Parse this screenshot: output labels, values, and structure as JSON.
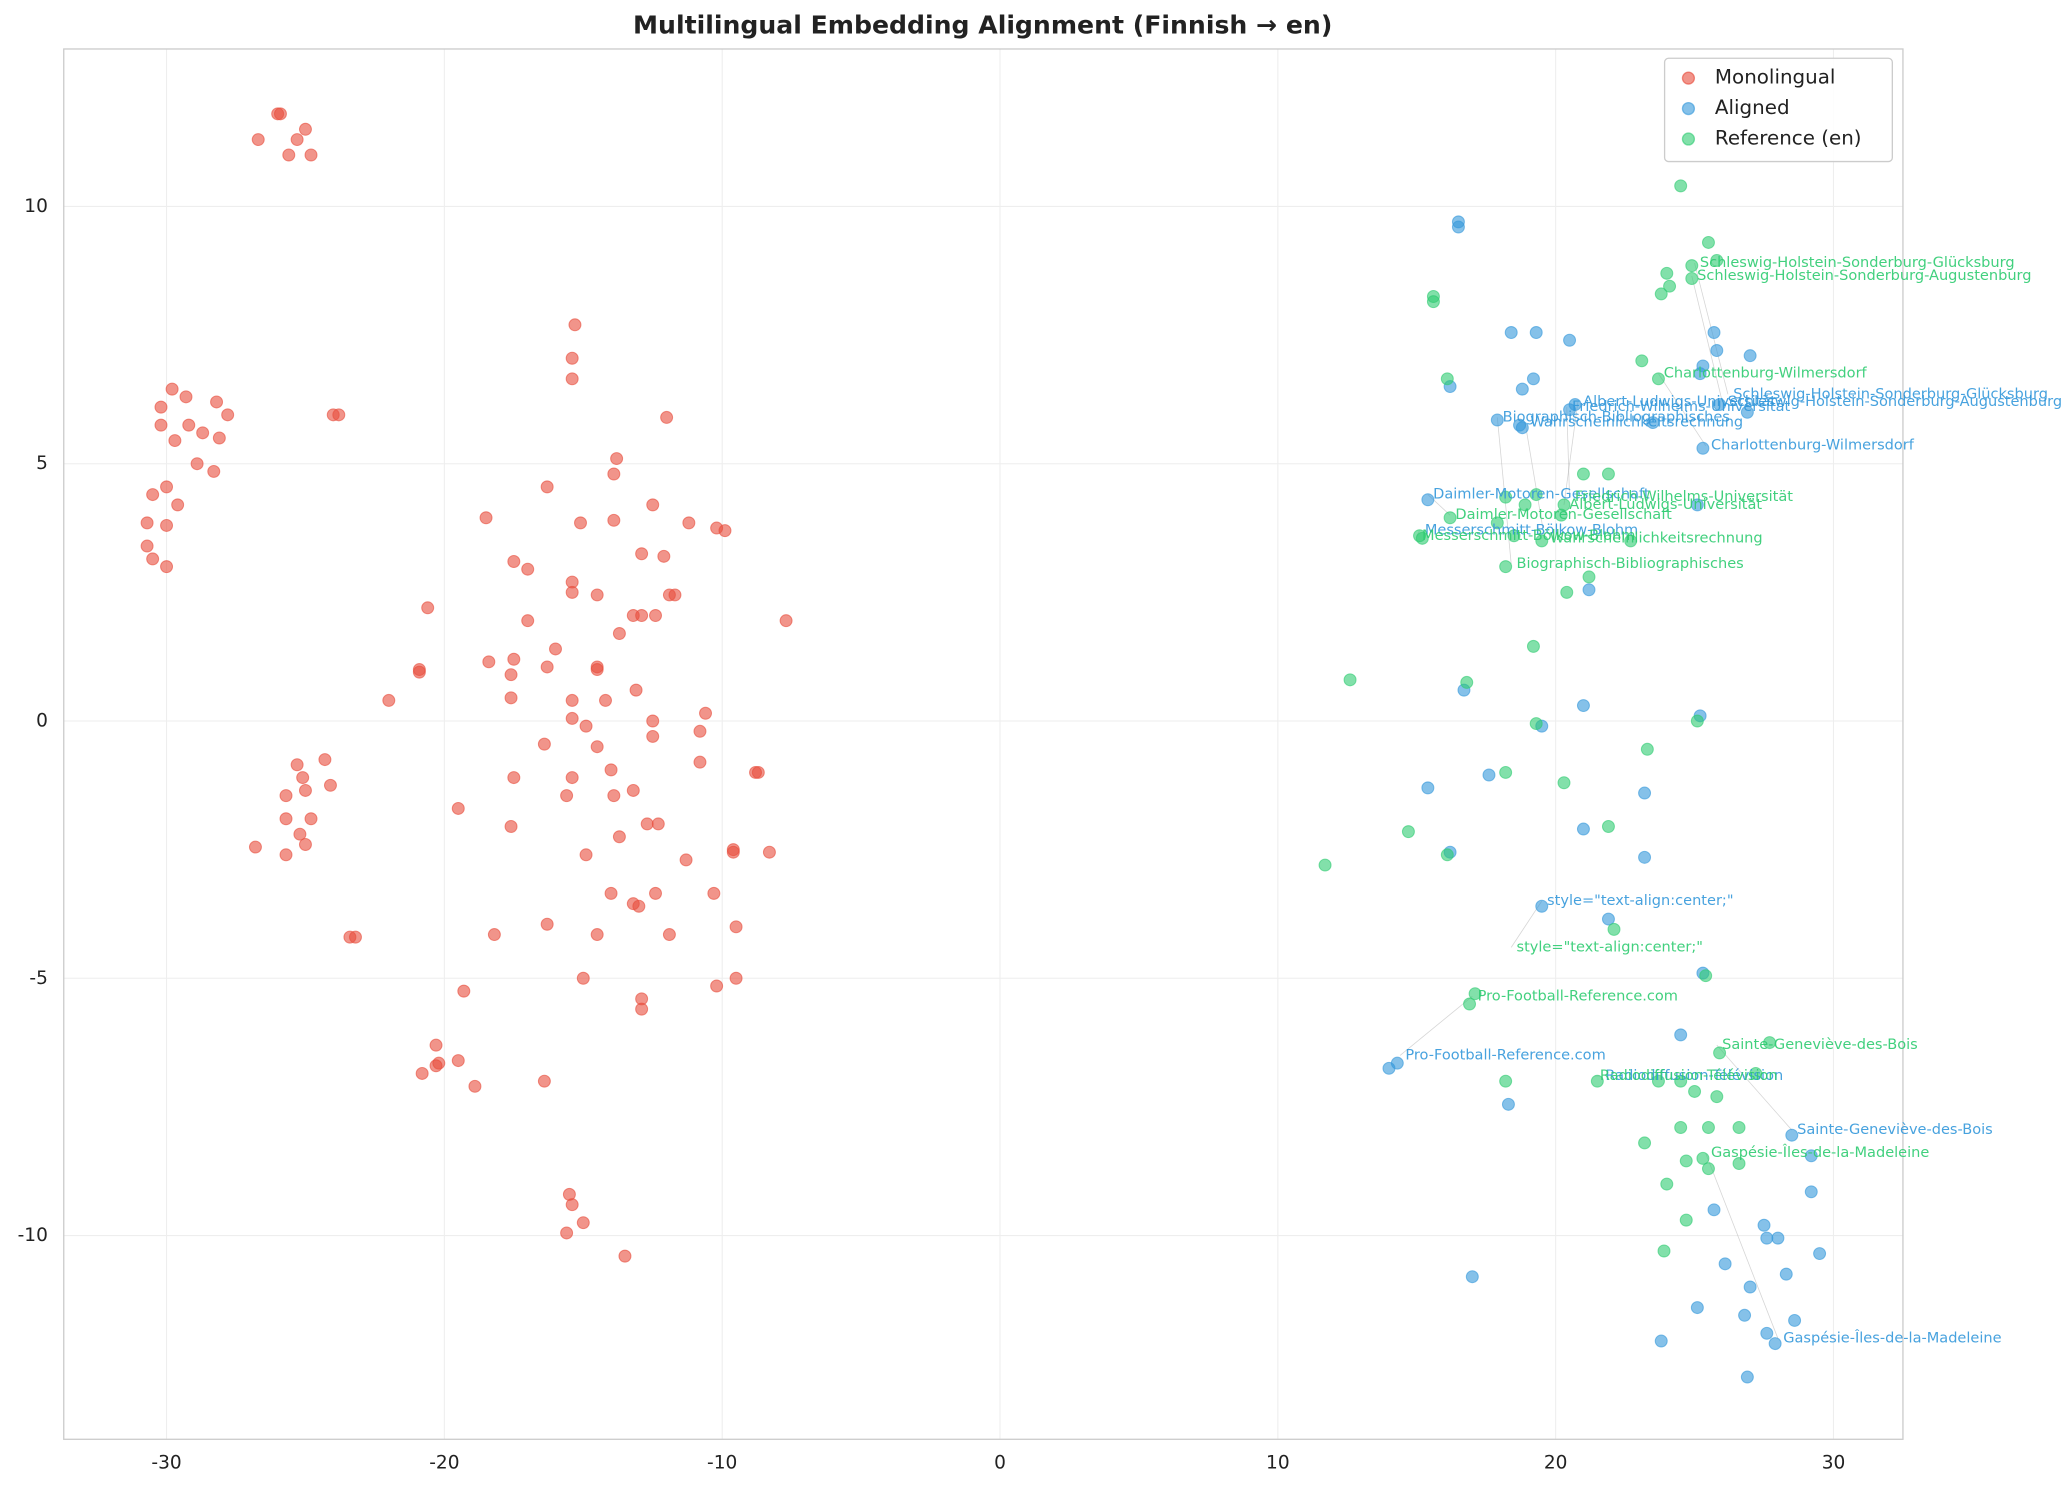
{
  "chart_data": {
    "type": "scatter",
    "title": "Multilingual Embedding Alignment (Finnish → en)",
    "xlim": [
      -33.7,
      32.5
    ],
    "ylim": [
      -13.96,
      13.06
    ],
    "xticks": [
      -30,
      -20,
      -10,
      0,
      10,
      20,
      30
    ],
    "yticks": [
      -10,
      -5,
      0,
      5,
      10
    ],
    "grid": true,
    "legend": "upper right",
    "alpha": 0.6,
    "series": [
      {
        "name": "Monolingual",
        "color": "#e74c3c",
        "x": [
          -26.0,
          -25.9,
          -26.7,
          -25.0,
          -25.3,
          -25.6,
          -24.8,
          -29.8,
          -29.3,
          -30.2,
          -28.2,
          -27.8,
          -30.2,
          -29.2,
          -28.7,
          -28.1,
          -29.7,
          -28.9,
          -28.3,
          -30.0,
          -30.5,
          -29.6,
          -30.7,
          -30.0,
          -30.7,
          -30.5,
          -30.0,
          -24.0,
          -23.8,
          -15.3,
          -15.4,
          -15.4,
          -12.0,
          -16.3,
          -13.8,
          -13.9,
          -18.5,
          -15.1,
          -13.9,
          -12.5,
          -11.2,
          -10.2,
          -9.9,
          -12.9,
          -12.1,
          -17.5,
          -17.0,
          -15.4,
          -15.4,
          -14.5,
          -11.9,
          -11.7,
          -20.6,
          -13.2,
          -12.9,
          -12.4,
          -17.0,
          -7.7,
          -13.7,
          -16.0,
          -18.4,
          -17.5,
          -16.3,
          -14.5,
          -14.5,
          -20.9,
          -20.9,
          -17.6,
          -13.1,
          -22.0,
          -17.6,
          -15.4,
          -14.2,
          -10.6,
          -15.4,
          -12.5,
          -14.9,
          -10.8,
          -12.5,
          -16.4,
          -14.5,
          -10.8,
          -24.3,
          -25.3,
          -14.0,
          -25.1,
          -15.4,
          -8.8,
          -8.7,
          -17.5,
          -24.1,
          -25.0,
          -25.7,
          -15.6,
          -13.9,
          -13.2,
          -19.5,
          -24.8,
          -25.7,
          -17.6,
          -12.7,
          -12.3,
          -25.2,
          -13.7,
          -25.0,
          -26.8,
          -9.6,
          -9.6,
          -8.3,
          -25.7,
          -14.9,
          -11.3,
          -12.4,
          -14.0,
          -10.3,
          -13.2,
          -13.0,
          -16.3,
          -9.5,
          -23.4,
          -23.2,
          -18.2,
          -14.5,
          -11.9,
          -15.0,
          -9.5,
          -19.3,
          -10.2,
          -12.9,
          -12.9,
          -20.3,
          -20.2,
          -20.3,
          -19.5,
          -20.8,
          -16.4,
          -18.9,
          -15.5,
          -15.4,
          -15.6,
          -15.0,
          -13.5
        ],
        "y": [
          11.8,
          11.8,
          11.3,
          11.5,
          11.3,
          11.0,
          11.0,
          6.45,
          6.3,
          6.1,
          6.2,
          5.95,
          5.75,
          5.75,
          5.6,
          5.5,
          5.45,
          5.0,
          4.85,
          4.55,
          4.4,
          4.2,
          3.85,
          3.8,
          3.4,
          3.15,
          3.0,
          5.95,
          5.95,
          7.7,
          7.05,
          6.65,
          5.9,
          4.55,
          5.1,
          4.8,
          3.95,
          3.85,
          3.9,
          4.2,
          3.85,
          3.75,
          3.7,
          3.25,
          3.2,
          3.1,
          2.95,
          2.7,
          2.5,
          2.45,
          2.45,
          2.45,
          2.2,
          2.05,
          2.05,
          2.05,
          1.95,
          1.95,
          1.7,
          1.4,
          1.15,
          1.2,
          1.05,
          1.05,
          1.0,
          1.0,
          0.95,
          0.9,
          0.6,
          0.4,
          0.45,
          0.4,
          0.4,
          0.15,
          0.05,
          0.0,
          -0.1,
          -0.2,
          -0.3,
          -0.45,
          -0.5,
          -0.8,
          -0.75,
          -0.85,
          -0.95,
          -1.1,
          -1.1,
          -1.0,
          -1.0,
          -1.1,
          -1.25,
          -1.35,
          -1.45,
          -1.45,
          -1.45,
          -1.35,
          -1.7,
          -1.9,
          -1.9,
          -2.05,
          -2.0,
          -2.0,
          -2.2,
          -2.25,
          -2.4,
          -2.45,
          -2.5,
          -2.55,
          -2.55,
          -2.6,
          -2.6,
          -2.7,
          -3.35,
          -3.35,
          -3.35,
          -3.55,
          -3.6,
          -3.95,
          -4.0,
          -4.2,
          -4.2,
          -4.15,
          -4.15,
          -4.15,
          -5.0,
          -5.0,
          -5.25,
          -5.15,
          -5.4,
          -5.6,
          -6.3,
          -6.65,
          -6.7,
          -6.6,
          -6.85,
          -7.0,
          -7.1,
          -9.2,
          -9.4,
          -9.95,
          -9.75,
          -10.4
        ]
      },
      {
        "name": "Aligned",
        "color": "#3498db",
        "x": [
          16.5,
          16.5,
          18.4,
          19.3,
          20.5,
          25.7,
          27.0,
          25.8,
          25.3,
          19.2,
          16.2,
          18.8,
          25.2,
          20.7,
          20.5,
          25.9,
          26.9,
          17.9,
          18.7,
          18.8,
          23.5,
          25.3,
          15.4,
          25.1,
          21.2,
          16.7,
          21.0,
          25.2,
          19.5,
          17.6,
          15.4,
          23.2,
          21.0,
          16.2,
          23.2,
          19.5,
          21.9,
          25.3,
          24.5,
          14.3,
          14.0,
          18.3,
          28.5,
          29.2,
          29.2,
          25.7,
          27.5,
          27.6,
          28.0,
          29.5,
          26.1,
          28.3,
          17.0,
          27.0,
          25.1,
          26.8,
          28.6,
          27.6,
          27.9,
          23.8,
          26.9
        ],
        "y": [
          9.7,
          9.6,
          7.55,
          7.55,
          7.4,
          7.55,
          7.1,
          7.2,
          6.9,
          6.65,
          6.5,
          6.45,
          6.75,
          6.15,
          6.05,
          6.15,
          6.0,
          5.85,
          5.75,
          5.7,
          5.8,
          5.3,
          4.3,
          4.2,
          2.55,
          0.6,
          0.3,
          0.1,
          -0.1,
          -1.05,
          -1.3,
          -1.4,
          -2.1,
          -2.55,
          -2.65,
          -3.6,
          -3.85,
          -4.9,
          -6.1,
          -6.65,
          -6.75,
          -7.45,
          -8.05,
          -8.45,
          -9.15,
          -9.5,
          -9.8,
          -10.05,
          -10.05,
          -10.35,
          -10.55,
          -10.75,
          -10.8,
          -11.0,
          -11.4,
          -11.55,
          -11.65,
          -11.9,
          -12.1,
          -12.05,
          -12.75
        ]
      },
      {
        "name": "Reference (en)",
        "color": "#2ecc71",
        "x": [
          24.5,
          25.5,
          25.8,
          24.9,
          24.0,
          24.1,
          24.9,
          23.8,
          15.6,
          15.6,
          23.1,
          23.7,
          16.1,
          21.0,
          21.9,
          18.2,
          19.3,
          18.9,
          20.3,
          20.2,
          16.2,
          17.9,
          18.5,
          15.1,
          15.2,
          19.5,
          22.7,
          18.2,
          21.2,
          20.4,
          19.2,
          12.6,
          16.8,
          19.3,
          25.1,
          23.3,
          18.2,
          20.3,
          21.9,
          14.7,
          16.1,
          11.7,
          22.1,
          25.4,
          17.1,
          16.9,
          27.7,
          25.9,
          27.2,
          18.2,
          21.5,
          23.7,
          24.5,
          25.0,
          25.8,
          24.5,
          25.5,
          26.6,
          23.2,
          24.7,
          25.3,
          25.5,
          26.6,
          24.0,
          24.7,
          23.9
        ],
        "y": [
          10.4,
          9.3,
          8.95,
          8.85,
          8.7,
          8.45,
          8.6,
          8.3,
          8.25,
          8.15,
          7.0,
          6.65,
          6.65,
          4.8,
          4.8,
          4.35,
          4.4,
          4.2,
          4.2,
          4.0,
          3.95,
          3.85,
          3.6,
          3.6,
          3.55,
          3.5,
          3.5,
          3.0,
          2.8,
          2.5,
          1.45,
          0.8,
          0.75,
          -0.05,
          0.0,
          -0.55,
          -1.0,
          -1.2,
          -2.05,
          -2.15,
          -2.6,
          -2.8,
          -4.05,
          -4.95,
          -5.3,
          -5.5,
          -6.25,
          -6.45,
          -6.85,
          -7.0,
          -7.0,
          -7.0,
          -7.0,
          -7.2,
          -7.3,
          -7.9,
          -7.9,
          -7.9,
          -8.2,
          -8.55,
          -8.5,
          -8.7,
          -8.6,
          -9.0,
          -9.7,
          -10.3
        ]
      }
    ],
    "annotations": [
      {
        "text": "Schleswig-Holstein-Sonderburg-Glücksburg",
        "x": 26.2,
        "y": 6.35,
        "series": 1
      },
      {
        "text": "Schleswig-Holstein-Sonderburg-Augustenburg",
        "x": 26.0,
        "y": 6.2,
        "series": 1
      },
      {
        "text": "Albert-Ludwigs-Universität",
        "x": 20.8,
        "y": 6.2,
        "series": 1
      },
      {
        "text": "Friedrich-Wilhelms-Universität",
        "x": 20.4,
        "y": 6.1,
        "series": 1
      },
      {
        "text": "Biographisch-Bibliographisches",
        "x": 17.9,
        "y": 5.9,
        "series": 1
      },
      {
        "text": "Wahrscheinlichkeitsrechnung",
        "x": 18.9,
        "y": 5.8,
        "series": 1
      },
      {
        "text": "Charlottenburg-Wilmersdorf",
        "x": 25.4,
        "y": 5.35,
        "series": 1
      },
      {
        "text": "Daimler-Motoren-Gesellschaft",
        "x": 15.4,
        "y": 4.4,
        "series": 1
      },
      {
        "text": "Messerschmitt-Bölkow-Blohm",
        "x": 15.1,
        "y": 3.7,
        "series": 1
      },
      {
        "text": "style=\"text-align:center;\"",
        "x": 19.5,
        "y": -3.5,
        "series": 1
      },
      {
        "text": "Pro-Football-Reference.com",
        "x": 14.4,
        "y": -6.5,
        "series": 1
      },
      {
        "text": "Radiodiffusion-Télévision",
        "x": 21.6,
        "y": -6.9,
        "series": 1
      },
      {
        "text": "Sainte-Geneviève-des-Bois",
        "x": 28.5,
        "y": -7.95,
        "series": 1
      },
      {
        "text": "Gaspésie-Îles-de-la-Madeleine",
        "x": 28.0,
        "y": -12.0,
        "series": 1
      },
      {
        "text": "Schleswig-Holstein-Sonderburg-Glücksburg",
        "x": 25.0,
        "y": 8.9,
        "series": 2
      },
      {
        "text": "Schleswig-Holstein-Sonderburg-Augustenburg",
        "x": 24.9,
        "y": 8.65,
        "series": 2
      },
      {
        "text": "Charlottenburg-Wilmersdorf",
        "x": 23.7,
        "y": 6.75,
        "series": 2
      },
      {
        "text": "Friedrich-Wilhelms-Universität",
        "x": 20.5,
        "y": 4.35,
        "series": 2
      },
      {
        "text": "Albert-Ludwigs-Universität",
        "x": 20.3,
        "y": 4.2,
        "series": 2
      },
      {
        "text": "Daimler-Motoren-Gesellschaft",
        "x": 16.2,
        "y": 4.0,
        "series": 2
      },
      {
        "text": "Messerschmitt-Bölkow-Blohm",
        "x": 15.0,
        "y": 3.6,
        "series": 2
      },
      {
        "text": "Wahrscheinlichkeitsrechnung",
        "x": 19.6,
        "y": 3.55,
        "series": 2
      },
      {
        "text": "Biographisch-Bibliographisches",
        "x": 18.4,
        "y": 3.05,
        "series": 2
      },
      {
        "text": "style=\"text-align:center;\"",
        "x": 18.4,
        "y": -4.4,
        "series": 2
      },
      {
        "text": "Pro-Football-Reference.com",
        "x": 17.0,
        "y": -5.35,
        "series": 2
      },
      {
        "text": "Radiodiffusion-Télévision",
        "x": 21.4,
        "y": -6.9,
        "series": 2
      },
      {
        "text": "Sainte-Geneviève-des-Bois",
        "x": 25.8,
        "y": -6.3,
        "series": 2
      },
      {
        "text": "Gaspésie-Îles-de-la-Madeleine",
        "x": 25.4,
        "y": -8.4,
        "series": 2
      }
    ]
  }
}
